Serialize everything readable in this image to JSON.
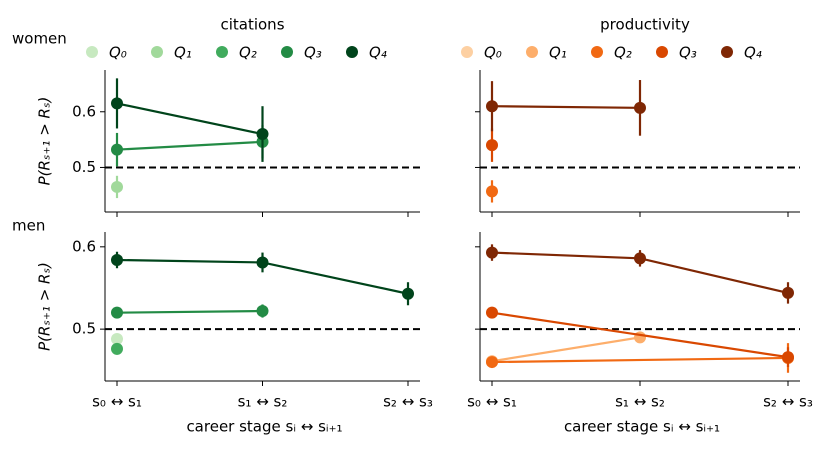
{
  "chart_data": [
    {
      "type": "line",
      "title": "citations",
      "row_label": "women",
      "y_label": "P(Rₛ₊₁ > Rₛ)",
      "ylim": [
        0.42,
        0.675
      ],
      "yticks": [
        0.5,
        0.6
      ],
      "show_ytick_labels": true,
      "reference_line": 0.5,
      "legend": "top",
      "series": [
        {
          "name": "Q₀",
          "color": "#c7e9c0",
          "values": [
            null,
            null,
            null
          ],
          "errors": [
            null,
            null,
            null
          ]
        },
        {
          "name": "Q₁",
          "color": "#a1d99b",
          "values": [
            0.465,
            null,
            null
          ],
          "errors": [
            0.02,
            null,
            null
          ]
        },
        {
          "name": "Q₂",
          "color": "#41ab5d",
          "values": [
            null,
            null,
            null
          ],
          "errors": [
            null,
            null,
            null
          ]
        },
        {
          "name": "Q₃",
          "color": "#238b45",
          "values": [
            0.532,
            0.546,
            null
          ],
          "errors": [
            0.03,
            0.03,
            null
          ]
        },
        {
          "name": "Q₄",
          "color": "#00441b",
          "values": [
            0.615,
            0.56,
            null
          ],
          "errors": [
            0.045,
            0.05,
            null
          ]
        }
      ]
    },
    {
      "type": "line",
      "title": "productivity",
      "ylim": [
        0.42,
        0.675
      ],
      "yticks": [
        0.5,
        0.6
      ],
      "show_ytick_labels": false,
      "reference_line": 0.5,
      "legend": "top",
      "series": [
        {
          "name": "Q₀",
          "color": "#fdd0a2",
          "values": [
            null,
            null,
            null
          ],
          "errors": [
            null,
            null,
            null
          ]
        },
        {
          "name": "Q₁",
          "color": "#fdae6b",
          "values": [
            null,
            null,
            null
          ],
          "errors": [
            null,
            null,
            null
          ]
        },
        {
          "name": "Q₂",
          "color": "#f16913",
          "values": [
            0.457,
            null,
            null
          ],
          "errors": [
            0.02,
            null,
            null
          ]
        },
        {
          "name": "Q₃",
          "color": "#d94801",
          "values": [
            0.54,
            null,
            null
          ],
          "errors": [
            0.03,
            null,
            null
          ]
        },
        {
          "name": "Q₄",
          "color": "#7f2704",
          "values": [
            0.61,
            0.607,
            null
          ],
          "errors": [
            0.045,
            0.05,
            null
          ]
        }
      ]
    },
    {
      "type": "line",
      "row_label": "men",
      "y_label": "P(Rₛ₊₁ > Rₛ)",
      "x_label": "career stage sᵢ ↔ sᵢ₊₁",
      "categories": [
        "s₀ ↔ s₁",
        "s₁ ↔ s₂",
        "s₂ ↔ s₃"
      ],
      "ylim": [
        0.437,
        0.618
      ],
      "yticks": [
        0.5,
        0.6
      ],
      "show_ytick_labels": true,
      "reference_line": 0.5,
      "series": [
        {
          "color": "#c7e9c0",
          "values": [
            0.488,
            null,
            null
          ],
          "errors": [
            0.006,
            null,
            null
          ]
        },
        {
          "color": "#41ab5d",
          "values": [
            0.476,
            null,
            null
          ],
          "errors": [
            0.007,
            null,
            null
          ]
        },
        {
          "color": "#238b45",
          "values": [
            0.52,
            0.522,
            null
          ],
          "errors": [
            0.006,
            0.008,
            null
          ]
        },
        {
          "color": "#00441b",
          "values": [
            0.584,
            0.581,
            0.543
          ],
          "errors": [
            0.01,
            0.012,
            0.014
          ]
        }
      ]
    },
    {
      "type": "line",
      "x_label": "career stage sᵢ ↔ sᵢ₊₁",
      "categories": [
        "s₀ ↔ s₁",
        "s₁ ↔ s₂",
        "s₂ ↔ s₃"
      ],
      "ylim": [
        0.437,
        0.618
      ],
      "yticks": [
        0.5,
        0.6
      ],
      "show_ytick_labels": false,
      "reference_line": 0.5,
      "series": [
        {
          "color": "#fdae6b",
          "values": [
            0.461,
            0.49,
            null
          ],
          "errors": [
            0.005,
            0.006,
            null
          ]
        },
        {
          "color": "#f16913",
          "values": [
            0.46,
            null,
            0.465
          ],
          "errors": [
            0.005,
            null,
            0.018
          ]
        },
        {
          "color": "#d94801",
          "values": [
            0.52,
            null,
            0.466
          ],
          "errors": [
            0.006,
            null,
            0.012
          ]
        },
        {
          "color": "#7f2704",
          "values": [
            0.593,
            0.586,
            0.544
          ],
          "errors": [
            0.01,
            0.01,
            0.013
          ]
        }
      ]
    }
  ]
}
